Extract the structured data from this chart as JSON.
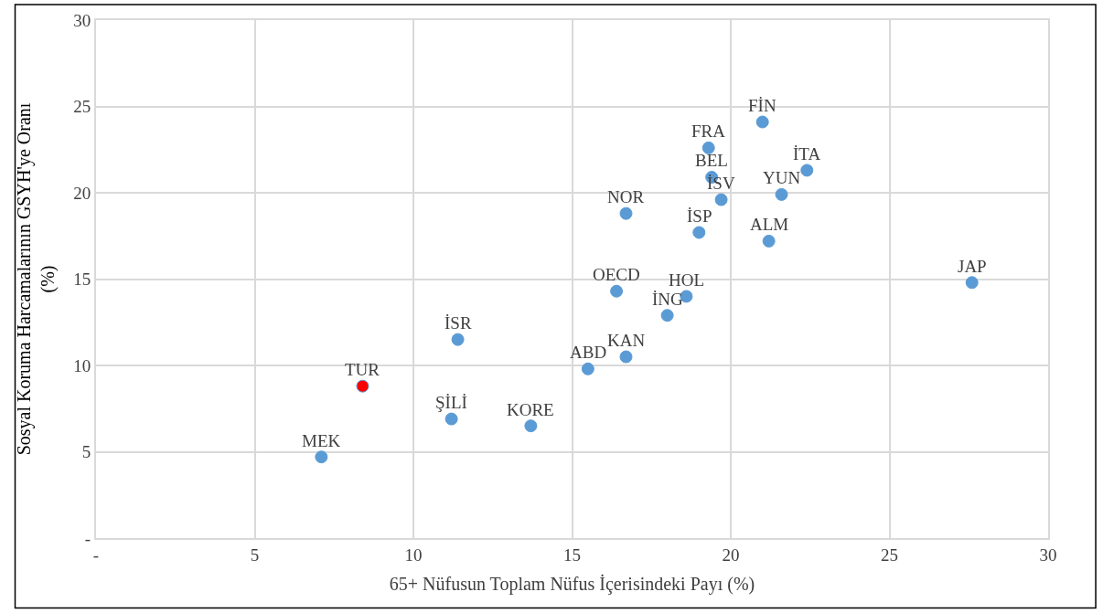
{
  "chart_data": {
    "type": "scatter",
    "xlabel": "65+ Nüfusun Toplam Nüfus İçerisindeki Payı (%)",
    "ylabel": "Sosyal Koruma Harcamalarının GSYH'ye Oranı\n(%)",
    "x": [
      7.1,
      8.4,
      11.2,
      13.7,
      11.4,
      15.5,
      16.7,
      16.4,
      18.0,
      18.6,
      16.7,
      19.0,
      19.4,
      19.3,
      19.7,
      21.0,
      22.4,
      21.6,
      21.2,
      27.6
    ],
    "values": [
      4.7,
      8.8,
      6.9,
      6.5,
      11.5,
      9.8,
      10.5,
      14.3,
      12.9,
      14.0,
      18.8,
      17.7,
      20.9,
      22.6,
      19.6,
      24.1,
      21.3,
      19.9,
      17.2,
      14.8
    ],
    "colors": [
      "#5b9bd5",
      "#ff0000",
      "#5b9bd5",
      "#5b9bd5",
      "#5b9bd5",
      "#5b9bd5",
      "#5b9bd5",
      "#5b9bd5",
      "#5b9bd5",
      "#5b9bd5",
      "#5b9bd5",
      "#5b9bd5",
      "#5b9bd5",
      "#5b9bd5",
      "#5b9bd5",
      "#5b9bd5",
      "#5b9bd5",
      "#5b9bd5",
      "#5b9bd5",
      "#5b9bd5"
    ],
    "annotations": [
      {
        "text": "MEK",
        "x": 7.1,
        "y": 4.7
      },
      {
        "text": "TUR",
        "x": 8.4,
        "y": 8.8
      },
      {
        "text": "ŞİLİ",
        "x": 11.2,
        "y": 6.9
      },
      {
        "text": "KORE",
        "x": 13.7,
        "y": 6.5
      },
      {
        "text": "İSR",
        "x": 11.4,
        "y": 11.5
      },
      {
        "text": "ABD",
        "x": 15.5,
        "y": 9.8
      },
      {
        "text": "KAN",
        "x": 16.7,
        "y": 10.5
      },
      {
        "text": "OECD",
        "x": 16.4,
        "y": 14.3
      },
      {
        "text": "İNG",
        "x": 18.0,
        "y": 12.9
      },
      {
        "text": "HOL",
        "x": 18.6,
        "y": 14.0
      },
      {
        "text": "NOR",
        "x": 16.7,
        "y": 18.8
      },
      {
        "text": "İSP",
        "x": 19.0,
        "y": 17.7
      },
      {
        "text": "BEL",
        "x": 19.4,
        "y": 20.9
      },
      {
        "text": "FRA",
        "x": 19.3,
        "y": 22.6
      },
      {
        "text": "İSV",
        "x": 19.7,
        "y": 19.6
      },
      {
        "text": "FİN",
        "x": 21.0,
        "y": 24.1
      },
      {
        "text": "İTA",
        "x": 22.4,
        "y": 21.3
      },
      {
        "text": "YUN",
        "x": 21.6,
        "y": 19.9
      },
      {
        "text": "ALM",
        "x": 21.2,
        "y": 17.2
      },
      {
        "text": "JAP",
        "x": 27.6,
        "y": 14.8
      }
    ],
    "xlim": [
      0,
      30
    ],
    "xticks": [
      {
        "value": 0,
        "label": "-"
      },
      5,
      10,
      15,
      20,
      25,
      30
    ],
    "ylim": [
      0,
      30
    ],
    "yticks": [
      {
        "value": 0,
        "label": "-"
      },
      5,
      10,
      15,
      20,
      25,
      30
    ],
    "grid": true,
    "marker": "circle"
  }
}
